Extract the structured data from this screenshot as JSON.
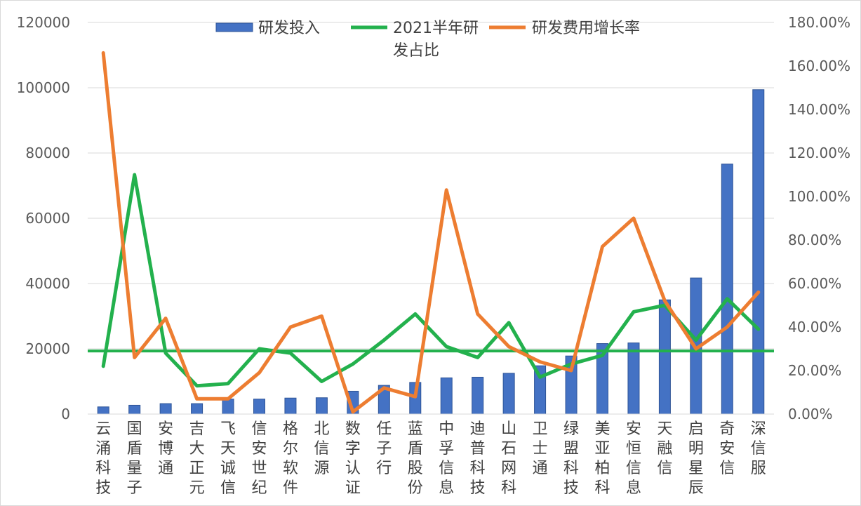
{
  "chart_data": {
    "type": "bar+line",
    "categories": [
      "云涌科技",
      "国盾量子",
      "安博通",
      "吉大正元",
      "飞天诚信",
      "信安世纪",
      "格尔软件",
      "北信源",
      "数字认证",
      "任子行",
      "蓝盾股份",
      "中孚信息",
      "迪普科技",
      "山石网科",
      "卫士通",
      "绿盟科技",
      "美亚柏科",
      "安恒信息",
      "天融信",
      "启明星辰",
      "奇安信",
      "深信服"
    ],
    "left_axis": {
      "ylim": [
        0,
        120000
      ],
      "ticks": [
        "0",
        "20000",
        "40000",
        "60000",
        "80000",
        "100000",
        "120000"
      ]
    },
    "right_axis": {
      "ylim": [
        0,
        1.8
      ],
      "ticks": [
        "0.00%",
        "20.00%",
        "40.00%",
        "60.00%",
        "80.00%",
        "100.00%",
        "120.00%",
        "140.00%",
        "160.00%",
        "180.00%"
      ]
    },
    "series": [
      {
        "name": "研发投入",
        "type": "bar",
        "axis": "left",
        "color": "#4472C4",
        "values": [
          2200,
          2700,
          3200,
          3200,
          4600,
          4600,
          4900,
          5000,
          7000,
          8800,
          9700,
          11100,
          11300,
          12500,
          14800,
          17800,
          21600,
          21800,
          35000,
          41700,
          76600,
          99400
        ]
      },
      {
        "name": "2021半年研发占比",
        "type": "line",
        "axis": "right",
        "color": "#23B14D",
        "values": [
          0.22,
          1.1,
          0.28,
          0.13,
          0.14,
          0.3,
          0.28,
          0.15,
          0.23,
          0.34,
          0.46,
          0.31,
          0.26,
          0.42,
          0.17,
          0.23,
          0.27,
          0.47,
          0.5,
          0.34,
          0.53,
          0.39
        ]
      },
      {
        "name": "研发费用增长率",
        "type": "line",
        "axis": "right",
        "color": "#ED7D31",
        "values": [
          1.66,
          0.26,
          0.44,
          0.07,
          0.07,
          0.19,
          0.4,
          0.45,
          0.01,
          0.12,
          0.08,
          1.03,
          0.46,
          0.31,
          0.24,
          0.2,
          0.77,
          0.9,
          0.52,
          0.3,
          0.4,
          0.56
        ]
      }
    ],
    "reference_line": {
      "axis": "right",
      "value": 0.29,
      "color": "#23B14D"
    },
    "legend": {
      "placement": "top-center",
      "labels": [
        "研发投入",
        "2021半年研发占比",
        "研发费用增长率"
      ]
    }
  }
}
